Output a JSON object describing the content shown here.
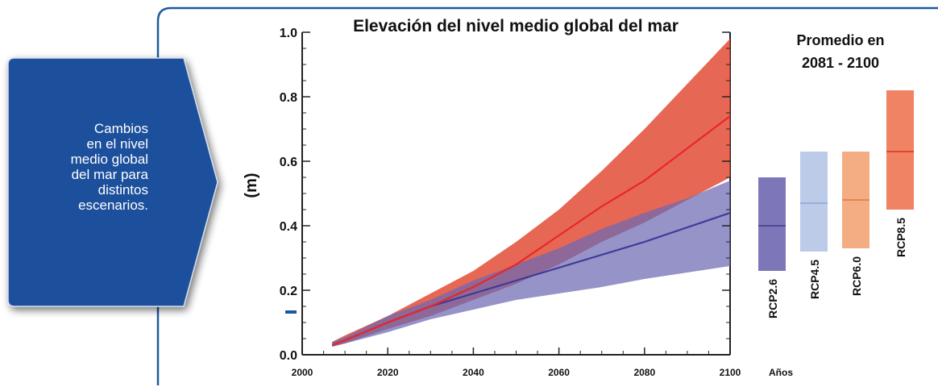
{
  "callout": {
    "text_lines": [
      "Cambios",
      "en el nivel",
      "medio global",
      "del mar para",
      "distintos",
      "escenarios."
    ]
  },
  "chart_data": [
    {
      "type": "area",
      "title": "Elevación del nivel medio global del mar",
      "xlabel": "",
      "ylabel": "(m)",
      "xlim": [
        2000,
        2100
      ],
      "ylim": [
        0.0,
        1.0
      ],
      "x_ticks": [
        "2000",
        "2020",
        "2040",
        "2060",
        "2080",
        "2100"
      ],
      "y_ticks": [
        "0.0",
        "0.2",
        "0.4",
        "0.6",
        "0.8",
        "1.0"
      ],
      "grid": false,
      "series": [
        {
          "name": "RCP2.6",
          "color": "#6c69b3",
          "x": [
            2007,
            2010,
            2020,
            2030,
            2040,
            2050,
            2060,
            2070,
            2080,
            2090,
            2100
          ],
          "mean": [
            0.03,
            0.045,
            0.1,
            0.15,
            0.19,
            0.23,
            0.27,
            0.31,
            0.35,
            0.395,
            0.44
          ],
          "lower": [
            0.025,
            0.035,
            0.07,
            0.11,
            0.14,
            0.17,
            0.19,
            0.21,
            0.235,
            0.255,
            0.275
          ],
          "upper": [
            0.04,
            0.055,
            0.12,
            0.17,
            0.23,
            0.28,
            0.33,
            0.39,
            0.44,
            0.485,
            0.54
          ]
        },
        {
          "name": "RCP8.5",
          "color": "#e2462f",
          "x": [
            2007,
            2010,
            2020,
            2030,
            2040,
            2050,
            2060,
            2070,
            2080,
            2090,
            2100
          ],
          "mean": [
            0.03,
            0.045,
            0.1,
            0.15,
            0.21,
            0.28,
            0.37,
            0.46,
            0.54,
            0.64,
            0.74
          ],
          "lower": [
            0.025,
            0.035,
            0.08,
            0.12,
            0.17,
            0.22,
            0.28,
            0.35,
            0.41,
            0.48,
            0.55
          ],
          "upper": [
            0.04,
            0.06,
            0.12,
            0.19,
            0.26,
            0.35,
            0.45,
            0.57,
            0.7,
            0.84,
            0.98
          ]
        }
      ]
    },
    {
      "type": "bar",
      "title": "Promedio en 2081 - 2100",
      "xlabel": "Años",
      "categories": [
        "RCP2.6",
        "RCP4.5",
        "RCP6.0",
        "RCP8.5"
      ],
      "ylim": [
        0.0,
        1.0
      ],
      "ranges": [
        {
          "name": "RCP2.6",
          "low": 0.26,
          "high": 0.55,
          "median": 0.4,
          "color": "#7d76b8",
          "line": "#3e3a8a"
        },
        {
          "name": "RCP4.5",
          "low": 0.32,
          "high": 0.63,
          "median": 0.47,
          "color": "#bccbe8",
          "line": "#8ea3d6"
        },
        {
          "name": "RCP6.0",
          "low": 0.33,
          "high": 0.63,
          "median": 0.48,
          "color": "#f4ad83",
          "line": "#e4773e"
        },
        {
          "name": "RCP8.5",
          "low": 0.45,
          "high": 0.82,
          "median": 0.63,
          "color": "#f08363",
          "line": "#d9331d"
        }
      ]
    }
  ]
}
